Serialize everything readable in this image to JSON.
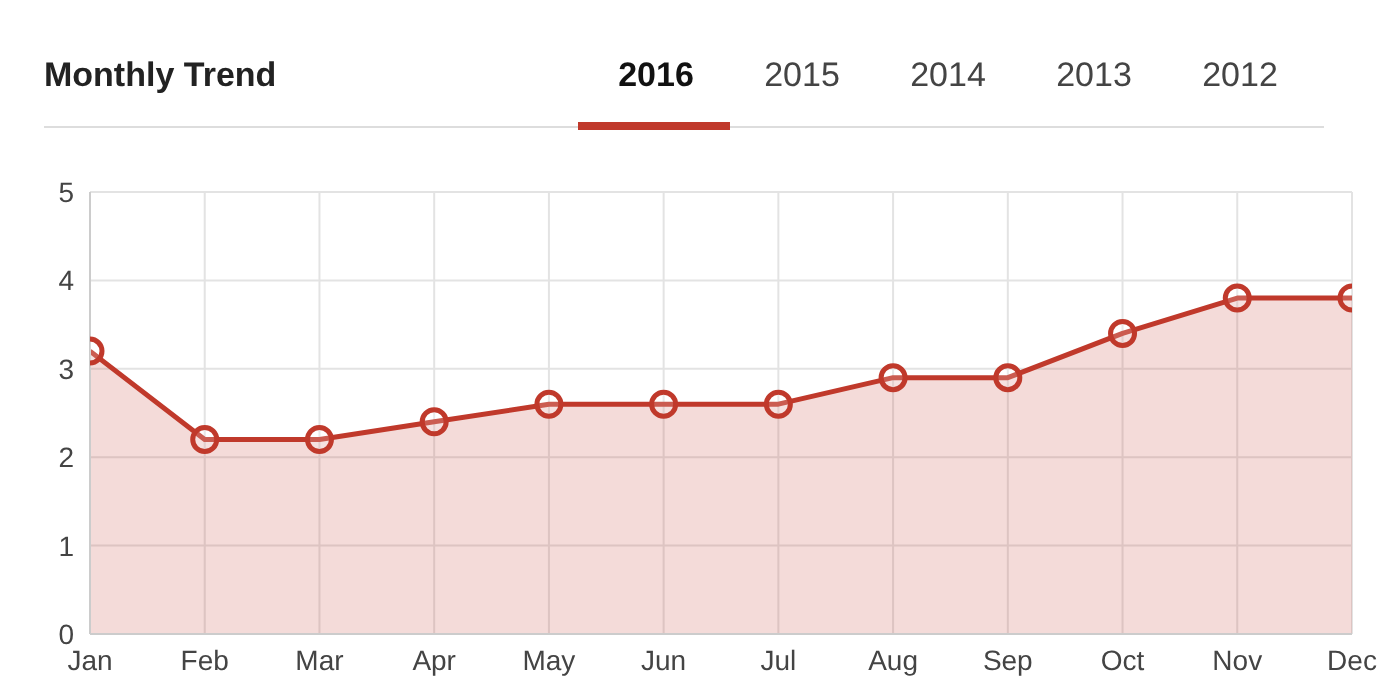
{
  "chart_data": {
    "type": "area",
    "title": "Monthly Trend",
    "annotations": [
      "2016",
      "2015",
      "2014",
      "2013",
      "2012"
    ],
    "categories": [
      "Jan",
      "Feb",
      "Mar",
      "Apr",
      "May",
      "Jun",
      "Jul",
      "Aug",
      "Sep",
      "Oct",
      "Nov",
      "Dec"
    ],
    "series": [
      {
        "color": "#c0392b",
        "values": [
          3.2,
          2.2,
          2.2,
          2.4,
          2.6,
          2.6,
          2.6,
          2.9,
          2.9,
          3.4,
          3.8,
          3.8
        ]
      }
    ],
    "ylim": [
      0,
      5
    ],
    "yticks": [
      0,
      1,
      2,
      3,
      4,
      5
    ],
    "grid": true,
    "marker": "circle",
    "line_style": "solid"
  }
}
